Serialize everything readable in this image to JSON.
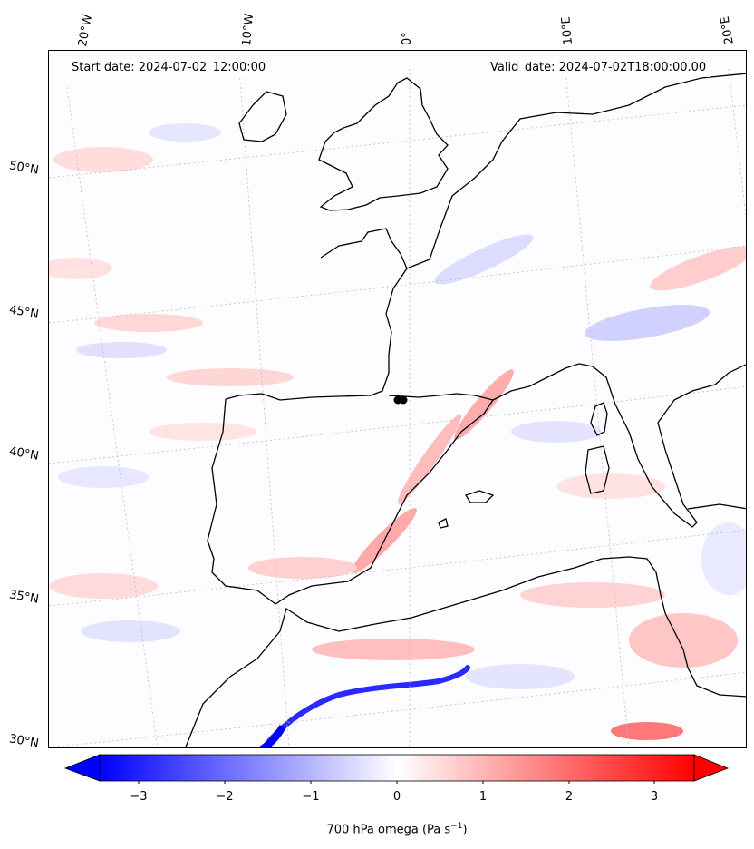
{
  "header": {
    "start_date": "Start date: 2024-07-02_12:00:00",
    "valid_date": "Valid_date: 2024-07-02T18:00:00.00"
  },
  "axes": {
    "longitude_labels": [
      "20°W",
      "10°W",
      "0°",
      "10°E",
      "20°E"
    ],
    "latitude_labels": [
      "50°N",
      "45°N",
      "40°N",
      "35°N",
      "30°N"
    ]
  },
  "colorbar": {
    "title_main": "700 hPa omega (Pa s",
    "title_exp": "−1",
    "title_close": ")",
    "ticks": [
      "−3",
      "−2",
      "−1",
      "0",
      "1",
      "2",
      "3"
    ],
    "range": [
      -3.7,
      3.7
    ],
    "colormap": "bwr",
    "extend": "both",
    "colors": {
      "negative": "#0000ff",
      "zero": "#ffffff",
      "positive": "#ff0000"
    }
  },
  "map": {
    "variable": "700 hPa omega",
    "land_outline_color": "#000000",
    "graticule_color": "#bbbbbb",
    "marker_color": "#000000"
  }
}
